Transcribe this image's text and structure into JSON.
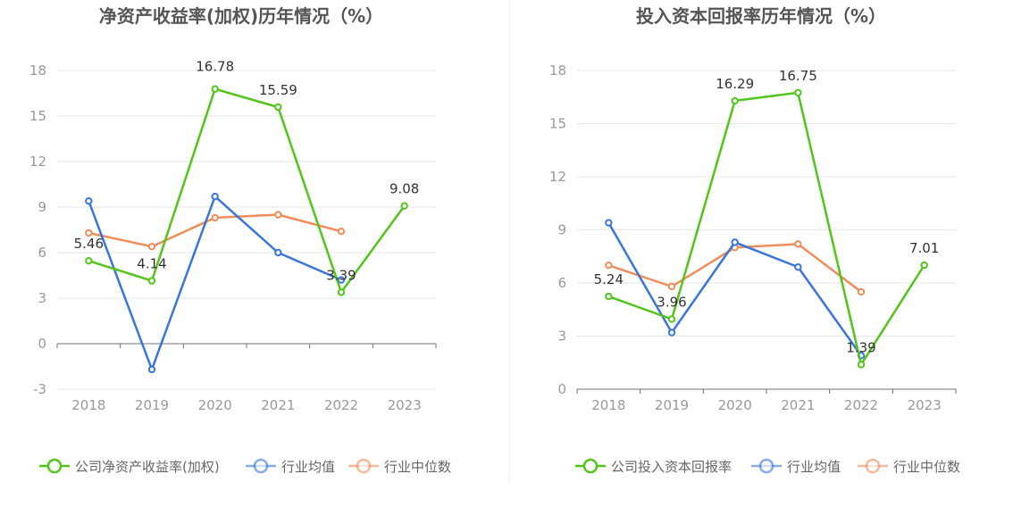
{
  "chart_data": [
    {
      "type": "line",
      "title": "净资产收益率(加权)历年情况（%）",
      "categories": [
        "2018",
        "2019",
        "2020",
        "2021",
        "2022",
        "2023"
      ],
      "ylim": [
        -3,
        18
      ],
      "yticks": [
        -3,
        0,
        3,
        6,
        9,
        12,
        15,
        18
      ],
      "grid": true,
      "legend_position": "bottom",
      "series": [
        {
          "name": "公司净资产收益率(加权)",
          "color": "#52c41a",
          "values": [
            5.46,
            4.14,
            16.78,
            15.59,
            3.39,
            9.08
          ],
          "labels": [
            "5.46",
            "4.14",
            "16.78",
            "15.59",
            "3.39",
            "9.08"
          ]
        },
        {
          "name": "行业均值",
          "color": "#3a75db",
          "values": [
            9.4,
            -1.7,
            9.7,
            6.0,
            4.2,
            null
          ]
        },
        {
          "name": "行业中位数",
          "color": "#f08c5a",
          "values": [
            7.3,
            6.4,
            8.3,
            8.5,
            7.4,
            null
          ]
        }
      ]
    },
    {
      "type": "line",
      "title": "投入资本回报率历年情况（%）",
      "categories": [
        "2018",
        "2019",
        "2020",
        "2021",
        "2022",
        "2023"
      ],
      "ylim": [
        0,
        18
      ],
      "yticks": [
        0,
        3,
        6,
        9,
        12,
        15,
        18
      ],
      "grid": true,
      "legend_position": "bottom",
      "series": [
        {
          "name": "公司投入资本回报率",
          "color": "#52c41a",
          "values": [
            5.24,
            3.96,
            16.29,
            16.75,
            1.39,
            7.01
          ],
          "labels": [
            "5.24",
            "3.96",
            "16.29",
            "16.75",
            "1.39",
            "7.01"
          ]
        },
        {
          "name": "行业均值",
          "color": "#3a75db",
          "values": [
            9.4,
            3.2,
            8.3,
            6.9,
            1.9,
            null
          ]
        },
        {
          "name": "行业中位数",
          "color": "#f08c5a",
          "values": [
            7.0,
            5.8,
            8.0,
            8.2,
            5.5,
            null
          ]
        }
      ]
    }
  ]
}
